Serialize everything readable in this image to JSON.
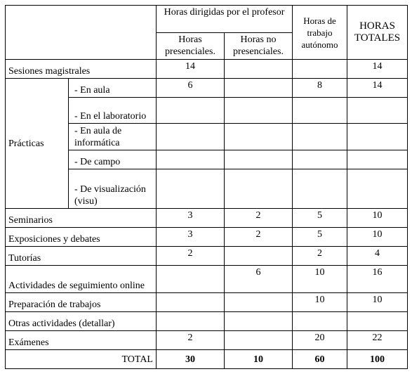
{
  "header": {
    "group": "Horas dirigidas por el profesor",
    "presenciales": "Horas presenciales.",
    "no_presenciales": "Horas no presenciales.",
    "autonomo": "Horas de trabajo autónomo",
    "totales": "HORAS TOTALES"
  },
  "rows": [
    {
      "label": "Sesiones magistrales",
      "cells": [
        14,
        null,
        null,
        14
      ]
    },
    {
      "label": "Prácticas",
      "subrows": [
        {
          "label": "- En aula",
          "cells": [
            6,
            null,
            8,
            14
          ]
        },
        {
          "label": "- En el laboratorio",
          "cells": [
            null,
            null,
            null,
            null
          ]
        },
        {
          "label": "- En aula de informática",
          "cells": [
            null,
            null,
            null,
            null
          ]
        },
        {
          "label": "- De campo",
          "cells": [
            null,
            null,
            null,
            null
          ]
        },
        {
          "label": "- De visualización (visu)",
          "cells": [
            null,
            null,
            null,
            null
          ]
        }
      ]
    },
    {
      "label": "Seminarios",
      "cells": [
        3,
        2,
        5,
        10
      ]
    },
    {
      "label": "Exposiciones y debates",
      "cells": [
        3,
        2,
        5,
        10
      ]
    },
    {
      "label": "Tutorías",
      "cells": [
        2,
        null,
        2,
        4
      ]
    },
    {
      "label": "Actividades de seguimiento online",
      "cells": [
        null,
        6,
        10,
        16
      ]
    },
    {
      "label": "Preparación de trabajos",
      "cells": [
        null,
        null,
        10,
        10
      ]
    },
    {
      "label": "Otras actividades (detallar)",
      "cells": [
        null,
        null,
        null,
        null
      ]
    },
    {
      "label": "Exámenes",
      "cells": [
        2,
        null,
        20,
        22
      ]
    }
  ],
  "total": {
    "label": "TOTAL",
    "cells": [
      30,
      10,
      60,
      100
    ]
  }
}
